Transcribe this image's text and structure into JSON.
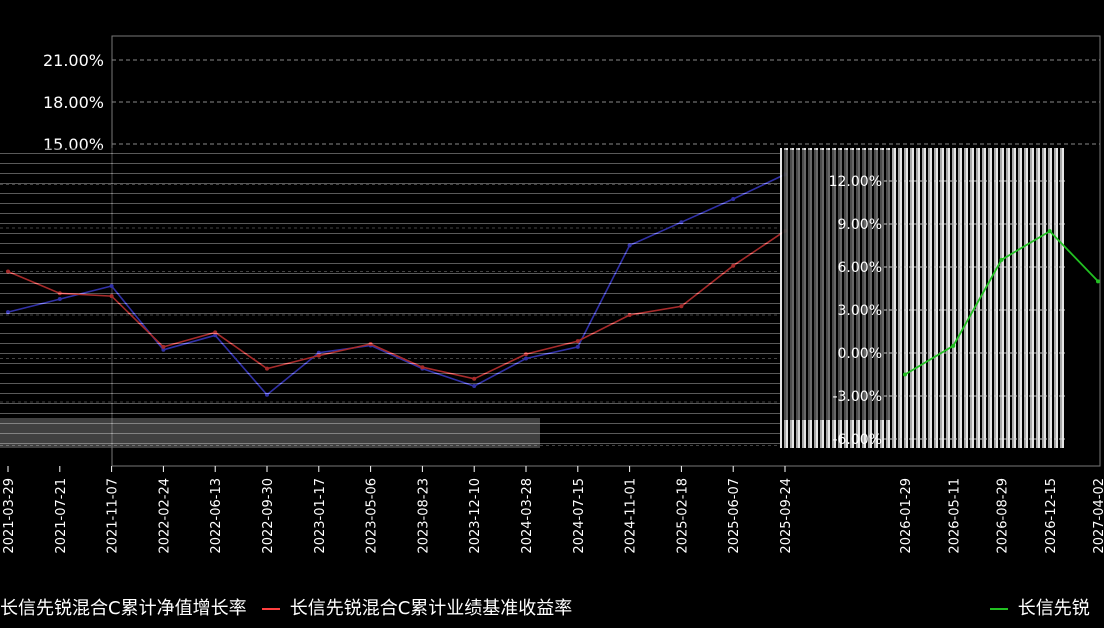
{
  "header": {
    "title": ""
  },
  "chart_data": {
    "type": "line",
    "title": "",
    "xlabel": "",
    "ylabel": "",
    "ylim": [
      -6,
      22
    ],
    "yticks_upper": [
      "21.00%",
      "18.00%",
      "15.00%"
    ],
    "yticks_inset": [
      "12.00%",
      "9.00%",
      "6.00%",
      "3.00%",
      "0.00%",
      "-3.00%",
      "-6.00%"
    ],
    "x_ticks": [
      "2021-03-29",
      "2021-07-21",
      "2021-11-07",
      "2022-02-24",
      "2022-06-13",
      "2022-09-30",
      "2023-01-17",
      "2023-05-06",
      "2023-08-23",
      "2023-12-10",
      "2024-03-28",
      "2024-07-15",
      "2024-11-01",
      "2025-02-18",
      "2025-06-07",
      "2025-09-24"
    ],
    "x_ticks_right": [
      "2026-01-29",
      "2026-05-11",
      "2026-08-29",
      "2026-12-15",
      "2027-04-02"
    ],
    "grid": true,
    "legend_position": "bottom",
    "series": [
      {
        "name": "长信先锐混合C累计净值增长率",
        "color": "#4a4aff",
        "x": [
          "2021-03-29",
          "2021-07-21",
          "2021-11-07",
          "2022-02-24",
          "2022-06-13",
          "2022-09-30",
          "2023-01-17",
          "2023-05-06",
          "2023-08-23",
          "2023-12-10",
          "2024-03-28",
          "2024-07-15",
          "2024-11-01",
          "2025-02-18",
          "2025-06-07",
          "2025-09-24"
        ],
        "values": [
          3.2,
          4.1,
          5.0,
          0.6,
          1.6,
          -2.5,
          0.4,
          0.9,
          -0.7,
          -1.9,
          0.0,
          0.8,
          7.8,
          9.4,
          11.0,
          12.7
        ]
      },
      {
        "name": "长信先锐混合C累计业绩基准收益率",
        "color": "#ff4040",
        "x": [
          "2021-03-29",
          "2021-07-21",
          "2021-11-07",
          "2022-02-24",
          "2022-06-13",
          "2022-09-30",
          "2023-01-17",
          "2023-05-06",
          "2023-08-23",
          "2023-12-10",
          "2024-03-28",
          "2024-07-15",
          "2024-11-01",
          "2025-02-18",
          "2025-06-07",
          "2025-09-24"
        ],
        "values": [
          6.0,
          4.5,
          4.3,
          0.8,
          1.8,
          -0.7,
          0.2,
          1.0,
          -0.6,
          -1.4,
          0.3,
          1.2,
          3.0,
          3.6,
          6.4,
          8.8
        ]
      }
    ],
    "inset_series_right": [
      {
        "name": "长信先锐",
        "color": "#22c022",
        "x": [
          "2026-01-29",
          "2026-05-11",
          "2026-08-29",
          "2026-12-15",
          "2027-04-02"
        ],
        "values": [
          -1.5,
          0.5,
          6.5,
          8.5,
          5.0
        ]
      }
    ]
  }
}
